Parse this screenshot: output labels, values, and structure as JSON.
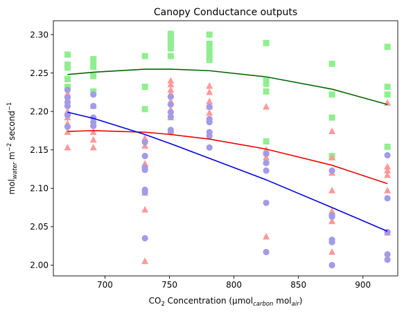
{
  "chart_data": {
    "type": "scatter",
    "title": "Canopy Conductance outputs",
    "xlabel": {
      "base": "CO",
      "sub1": "2",
      "mid": " Concentration (µmol",
      "sub2": "carbon",
      "mid2": " mol",
      "sub3": "air",
      "end": ")"
    },
    "ylabel": {
      "base": "mol",
      "sub1": "water",
      "mid": " m",
      "sup1": "−2",
      "mid2": " second",
      "sup2": "−1"
    },
    "xlim": [
      660,
      927
    ],
    "ylim": [
      1.986,
      2.318
    ],
    "xticks": [
      "700",
      "750",
      "800",
      "850",
      "900"
    ],
    "xtick_values": [
      700,
      750,
      800,
      850,
      900
    ],
    "yticks": [
      "2.00",
      "2.05",
      "2.10",
      "2.15",
      "2.20",
      "2.25",
      "2.30"
    ],
    "ytick_values": [
      2.0,
      2.05,
      2.1,
      2.15,
      2.2,
      2.25,
      2.3
    ],
    "colors": {
      "green_points": "#90ee90",
      "pink_points": "#ff9999",
      "purple_points": "#a29be8",
      "green_line": "#006400",
      "red_line": "#ee0000",
      "blue_line": "#0000dd"
    },
    "scatter_series": [
      {
        "marker": "square",
        "color_key": "green_points",
        "points": [
          [
            671,
            2.274
          ],
          [
            671,
            2.261
          ],
          [
            671,
            2.257
          ],
          [
            671,
            2.242
          ],
          [
            671,
            2.232
          ],
          [
            691,
            2.268
          ],
          [
            691,
            2.264
          ],
          [
            691,
            2.258
          ],
          [
            691,
            2.246
          ],
          [
            691,
            2.226
          ],
          [
            731,
            2.272
          ],
          [
            731,
            2.232
          ],
          [
            731,
            2.203
          ],
          [
            751,
            2.301
          ],
          [
            751,
            2.297
          ],
          [
            751,
            2.292
          ],
          [
            751,
            2.287
          ],
          [
            751,
            2.282
          ],
          [
            751,
            2.272
          ],
          [
            781,
            2.3
          ],
          [
            781,
            2.288
          ],
          [
            781,
            2.281
          ],
          [
            781,
            2.274
          ],
          [
            781,
            2.267
          ],
          [
            825,
            2.289
          ],
          [
            825,
            2.24
          ],
          [
            825,
            2.236
          ],
          [
            825,
            2.226
          ],
          [
            825,
            2.161
          ],
          [
            876,
            2.262
          ],
          [
            876,
            2.222
          ],
          [
            876,
            2.192
          ],
          [
            876,
            2.142
          ],
          [
            919,
            2.284
          ],
          [
            919,
            2.232
          ],
          [
            919,
            2.222
          ],
          [
            919,
            2.154
          ]
        ]
      },
      {
        "marker": "triangle",
        "color_key": "pink_points",
        "points": [
          [
            671,
            2.223
          ],
          [
            671,
            2.21
          ],
          [
            671,
            2.2
          ],
          [
            671,
            2.192
          ],
          [
            671,
            2.184
          ],
          [
            671,
            2.173
          ],
          [
            671,
            2.153
          ],
          [
            691,
            2.207
          ],
          [
            691,
            2.185
          ],
          [
            691,
            2.173
          ],
          [
            691,
            2.163
          ],
          [
            691,
            2.153
          ],
          [
            731,
            2.165
          ],
          [
            731,
            2.155
          ],
          [
            731,
            2.132
          ],
          [
            731,
            2.094
          ],
          [
            731,
            2.072
          ],
          [
            731,
            2.005
          ],
          [
            751,
            2.24
          ],
          [
            751,
            2.235
          ],
          [
            751,
            2.228
          ],
          [
            751,
            2.223
          ],
          [
            751,
            2.213
          ],
          [
            751,
            2.202
          ],
          [
            751,
            2.192
          ],
          [
            781,
            2.233
          ],
          [
            781,
            2.225
          ],
          [
            781,
            2.213
          ],
          [
            781,
            2.206
          ],
          [
            781,
            2.198
          ],
          [
            781,
            2.19
          ],
          [
            825,
            2.206
          ],
          [
            825,
            2.15
          ],
          [
            825,
            2.146
          ],
          [
            825,
            2.14
          ],
          [
            825,
            2.134
          ],
          [
            825,
            2.037
          ],
          [
            876,
            2.174
          ],
          [
            876,
            2.14
          ],
          [
            876,
            2.12
          ],
          [
            876,
            2.097
          ],
          [
            876,
            2.07
          ],
          [
            876,
            2.057
          ],
          [
            876,
            2.017
          ],
          [
            919,
            2.211
          ],
          [
            919,
            2.128
          ],
          [
            919,
            2.123
          ],
          [
            919,
            2.117
          ],
          [
            919,
            2.097
          ],
          [
            919,
            2.042
          ]
        ]
      },
      {
        "marker": "circle",
        "color_key": "purple_points",
        "points": [
          [
            671,
            2.228
          ],
          [
            671,
            2.218
          ],
          [
            671,
            2.212
          ],
          [
            671,
            2.207
          ],
          [
            671,
            2.195
          ],
          [
            671,
            2.18
          ],
          [
            691,
            2.222
          ],
          [
            691,
            2.207
          ],
          [
            691,
            2.192
          ],
          [
            691,
            2.186
          ],
          [
            691,
            2.181
          ],
          [
            731,
            2.16
          ],
          [
            731,
            2.142
          ],
          [
            731,
            2.127
          ],
          [
            731,
            2.124
          ],
          [
            731,
            2.098
          ],
          [
            731,
            2.095
          ],
          [
            731,
            2.035
          ],
          [
            751,
            2.219
          ],
          [
            751,
            2.209
          ],
          [
            751,
            2.199
          ],
          [
            751,
            2.193
          ],
          [
            751,
            2.176
          ],
          [
            751,
            2.173
          ],
          [
            781,
            2.206
          ],
          [
            781,
            2.19
          ],
          [
            781,
            2.186
          ],
          [
            781,
            2.173
          ],
          [
            781,
            2.168
          ],
          [
            781,
            2.153
          ],
          [
            825,
            2.145
          ],
          [
            825,
            2.133
          ],
          [
            825,
            2.123
          ],
          [
            825,
            2.081
          ],
          [
            825,
            2.017
          ],
          [
            876,
            2.123
          ],
          [
            876,
            2.065
          ],
          [
            876,
            2.063
          ],
          [
            876,
            2.033
          ],
          [
            876,
            2.03
          ],
          [
            876,
            2.0
          ],
          [
            919,
            2.143
          ],
          [
            919,
            2.087
          ],
          [
            919,
            2.043
          ],
          [
            919,
            2.014
          ],
          [
            919,
            2.007
          ]
        ]
      }
    ],
    "line_series": [
      {
        "color_key": "green_line",
        "x": [
          671,
          691,
          731,
          751,
          781,
          825,
          876,
          919
        ],
        "y": [
          2.248,
          2.251,
          2.255,
          2.255,
          2.253,
          2.245,
          2.229,
          2.209
        ]
      },
      {
        "color_key": "red_line",
        "x": [
          671,
          691,
          731,
          751,
          781,
          825,
          876,
          919
        ],
        "y": [
          2.174,
          2.175,
          2.173,
          2.17,
          2.164,
          2.151,
          2.13,
          2.106
        ]
      },
      {
        "color_key": "blue_line",
        "x": [
          671,
          691,
          731,
          751,
          781,
          825,
          876,
          919
        ],
        "y": [
          2.199,
          2.191,
          2.17,
          2.158,
          2.139,
          2.111,
          2.075,
          2.044
        ]
      }
    ],
    "grid": false,
    "legend": "none"
  }
}
